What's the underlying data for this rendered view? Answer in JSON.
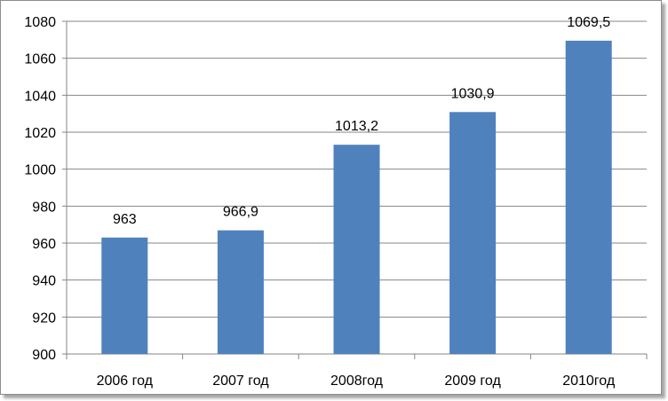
{
  "chart_data": {
    "type": "bar",
    "categories": [
      "2006 год",
      "2007 год",
      "2008год",
      "2009 год",
      "2010год"
    ],
    "values": [
      963,
      966.9,
      1013.2,
      1030.9,
      1069.5
    ],
    "value_labels": [
      "963",
      "966,9",
      "1013,2",
      "1030,9",
      "1069,5"
    ],
    "ylim": [
      900,
      1080
    ],
    "yticks": [
      900,
      920,
      940,
      960,
      980,
      1000,
      1020,
      1040,
      1060,
      1080
    ],
    "grid": true,
    "bar_color": "#4f81bd",
    "grid_color": "#868686",
    "title": "",
    "xlabel": "",
    "ylabel": ""
  }
}
